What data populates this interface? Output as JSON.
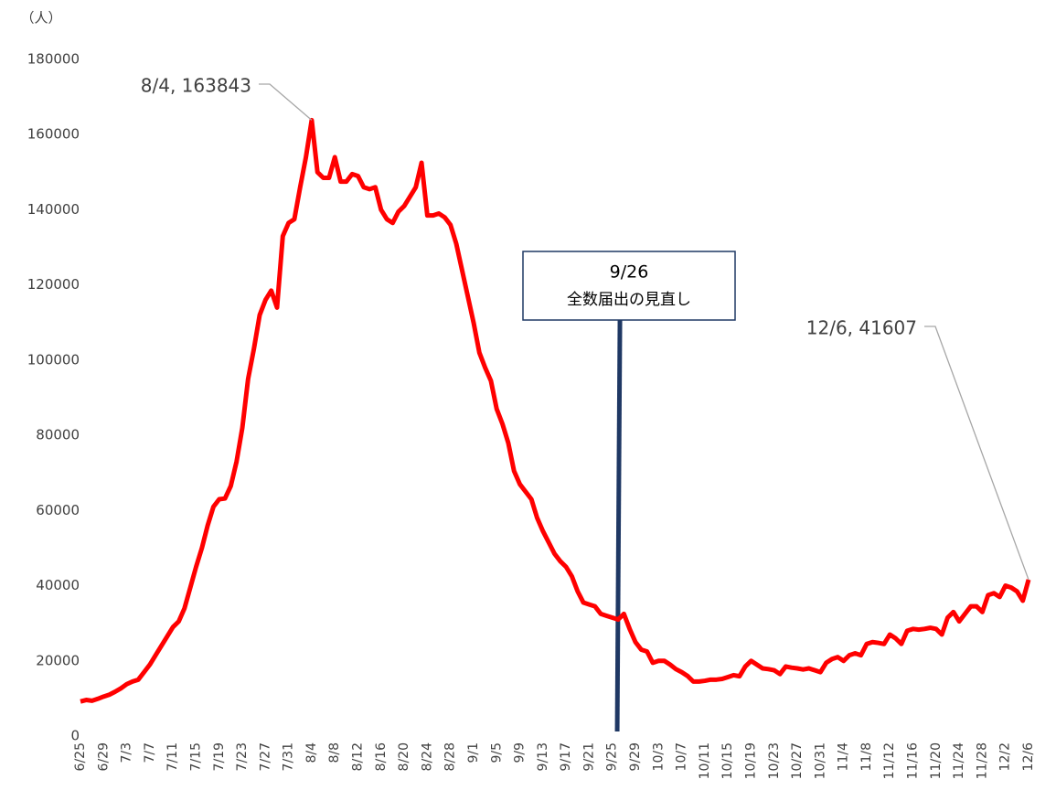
{
  "chart_data": {
    "type": "line",
    "y_unit": "（人）",
    "categories": [
      "6/25",
      null,
      null,
      null,
      "6/29",
      null,
      null,
      null,
      "7/3",
      null,
      null,
      null,
      "7/7",
      null,
      null,
      null,
      "7/11",
      null,
      null,
      null,
      "7/15",
      null,
      null,
      null,
      "7/19",
      null,
      null,
      null,
      "7/23",
      null,
      null,
      null,
      "7/27",
      null,
      null,
      null,
      "7/31",
      null,
      null,
      null,
      "8/4",
      null,
      null,
      null,
      "8/8",
      null,
      null,
      null,
      "8/12",
      null,
      null,
      null,
      "8/16",
      null,
      null,
      null,
      "8/20",
      null,
      null,
      null,
      "8/24",
      null,
      null,
      null,
      "8/28",
      null,
      null,
      null,
      "9/1",
      null,
      null,
      null,
      "9/5",
      null,
      null,
      null,
      "9/9",
      null,
      null,
      null,
      "9/13",
      null,
      null,
      null,
      "9/17",
      null,
      null,
      null,
      "9/21",
      null,
      null,
      null,
      "9/25",
      null,
      null,
      null,
      "9/29",
      null,
      null,
      null,
      "10/3",
      null,
      null,
      null,
      "10/7",
      null,
      null,
      null,
      "10/11",
      null,
      null,
      null,
      "10/15",
      null,
      null,
      null,
      "10/19",
      null,
      null,
      null,
      "10/23",
      null,
      null,
      null,
      "10/27",
      null,
      null,
      null,
      "10/31",
      null,
      null,
      null,
      "11/4",
      null,
      null,
      null,
      "11/8",
      null,
      null,
      null,
      "11/12",
      null,
      null,
      null,
      "11/16",
      null,
      null,
      null,
      "11/20",
      null,
      null,
      null,
      "11/24",
      null,
      null,
      null,
      "11/28",
      null,
      null,
      null,
      "12/2",
      null,
      null,
      null,
      "12/6"
    ],
    "series": [
      {
        "color": "#ff0000",
        "values": [
          9200,
          9600,
          9400,
          9900,
          10500,
          11000,
          11800,
          12700,
          13800,
          14500,
          15000,
          17000,
          19000,
          21500,
          24000,
          26500,
          29000,
          30500,
          34000,
          39500,
          45000,
          50000,
          56000,
          61000,
          63000,
          63200,
          66500,
          73000,
          82000,
          95000,
          103000,
          112000,
          116000,
          118500,
          114000,
          133000,
          136500,
          137500,
          146000,
          154000,
          163843,
          150000,
          148500,
          148500,
          154000,
          147500,
          147500,
          149500,
          149000,
          146000,
          145500,
          146000,
          140000,
          137500,
          136500,
          139500,
          141000,
          143500,
          146000,
          152500,
          138500,
          138500,
          139000,
          138000,
          136000,
          131000,
          124000,
          117000,
          110000,
          102000,
          98000,
          94500,
          87000,
          83000,
          78000,
          70500,
          67000,
          65000,
          63000,
          58000,
          54500,
          51500,
          48500,
          46500,
          45000,
          42500,
          38500,
          35500,
          35000,
          34500,
          32500,
          32000,
          31500,
          31000,
          32500,
          28500,
          25000,
          23000,
          22500,
          19500,
          20000,
          20000,
          19000,
          17800,
          17000,
          16000,
          14500,
          14500,
          14700,
          15000,
          15000,
          15200,
          15700,
          16200,
          15900,
          18500,
          20000,
          19000,
          18000,
          17800,
          17500,
          16500,
          18500,
          18200,
          18000,
          17700,
          18000,
          17500,
          17000,
          19500,
          20500,
          21000,
          20000,
          21500,
          22000,
          21500,
          24500,
          25000,
          24800,
          24500,
          27000,
          26000,
          24500,
          28000,
          28500,
          28300,
          28500,
          28800,
          28500,
          27000,
          31500,
          33000,
          30500,
          32500,
          34500,
          34500,
          33000,
          37500,
          38000,
          37000,
          40000,
          39500,
          38500,
          36000,
          41607
        ]
      }
    ],
    "ylim": [
      0,
      180000
    ],
    "yticks": [
      0,
      20000,
      40000,
      60000,
      80000,
      100000,
      120000,
      140000,
      160000,
      180000
    ],
    "grid": false,
    "annotations": [
      {
        "text": "8/4, 163843"
      },
      {
        "text": "12/6, 41607"
      },
      {
        "label": "9/26",
        "text": "全数届出の見直し",
        "color": "#1f3864"
      }
    ]
  }
}
